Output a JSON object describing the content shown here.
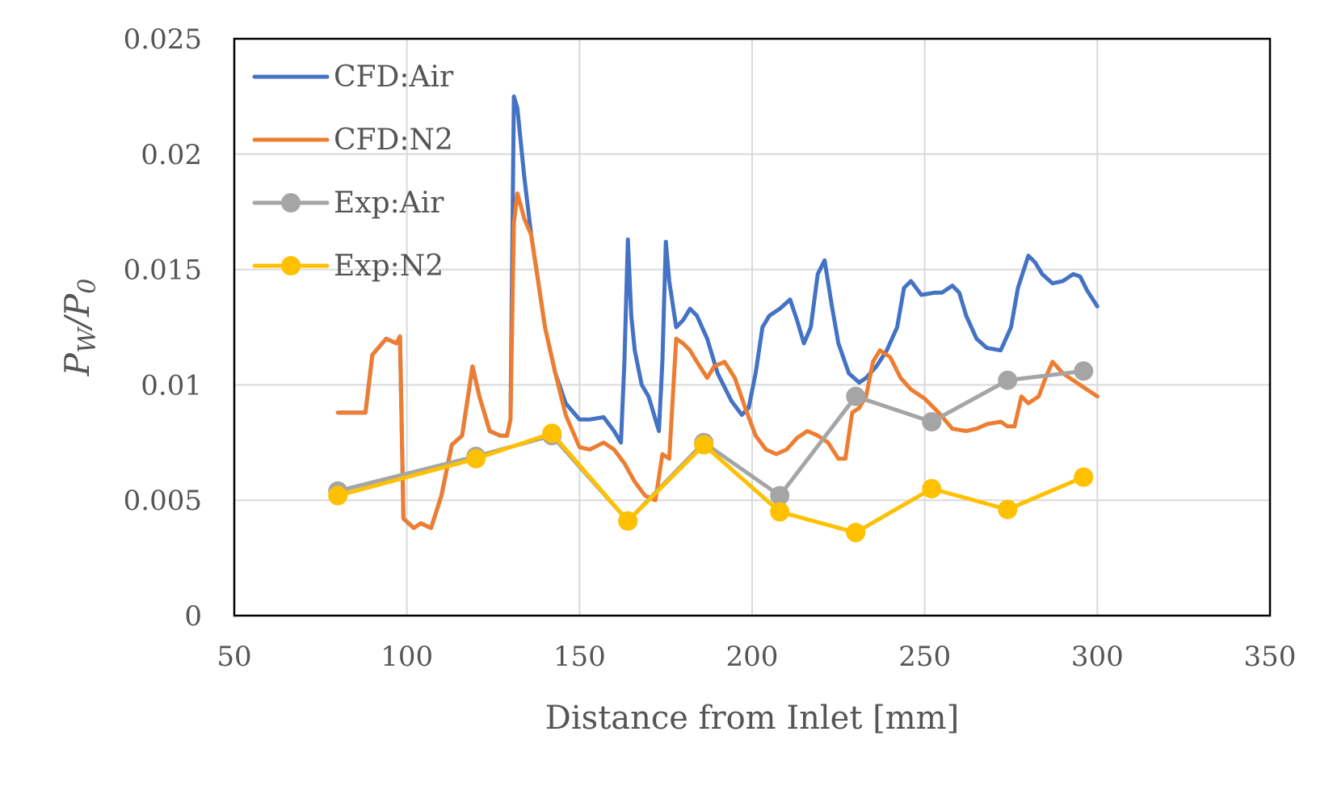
{
  "chart_data": {
    "type": "line",
    "xlabel": "Distance from Inlet [mm]",
    "ylabel": {
      "main": "P",
      "sub1": "W",
      "slash": "/",
      "main2": "P",
      "sub2": "0"
    },
    "xlim": [
      50,
      350
    ],
    "ylim": [
      0,
      0.025
    ],
    "x_ticks": [
      50,
      100,
      150,
      200,
      250,
      300,
      350
    ],
    "x_tick_labels": [
      "50",
      "100",
      "150",
      "200",
      "250",
      "300",
      "350"
    ],
    "y_ticks": [
      0,
      0.005,
      0.01,
      0.015,
      0.02,
      0.025
    ],
    "y_tick_labels": [
      "0",
      "0.005",
      "0.01",
      "0.015",
      "0.02",
      "0.025"
    ],
    "grid": true,
    "legend_position": "top-left",
    "series": [
      {
        "name": "CFD:Air",
        "color": "#4472C4",
        "marker": "none",
        "x": [
          80,
          88,
          90,
          94,
          97,
          98,
          99,
          102,
          104,
          107,
          110,
          113,
          116,
          119,
          121,
          124,
          127,
          129,
          130,
          131,
          132,
          134,
          136,
          138,
          140,
          143,
          146,
          150,
          153,
          157,
          160,
          162,
          163,
          164,
          165,
          166,
          168,
          170,
          173,
          174,
          175,
          176,
          178,
          180,
          182,
          184,
          187,
          190,
          194,
          197,
          199,
          201,
          203,
          205,
          208,
          211,
          213,
          215,
          217,
          219,
          221,
          223,
          225,
          228,
          231,
          233,
          236,
          239,
          242,
          244,
          246,
          249,
          253,
          255,
          258,
          260,
          262,
          265,
          268,
          272,
          275,
          277,
          280,
          282,
          284,
          287,
          290,
          293,
          295,
          297,
          300
        ],
        "y": [
          0.0088,
          0.0088,
          0.0113,
          0.012,
          0.0118,
          0.0121,
          0.0042,
          0.0038,
          0.004,
          0.0038,
          0.0052,
          0.0074,
          0.0078,
          0.0108,
          0.0095,
          0.008,
          0.0078,
          0.0078,
          0.0085,
          0.0225,
          0.022,
          0.019,
          0.0165,
          0.0145,
          0.0125,
          0.0105,
          0.0092,
          0.0085,
          0.0085,
          0.0086,
          0.008,
          0.0075,
          0.011,
          0.0163,
          0.013,
          0.0115,
          0.01,
          0.0095,
          0.008,
          0.011,
          0.0162,
          0.0145,
          0.0125,
          0.0128,
          0.0133,
          0.013,
          0.012,
          0.0105,
          0.0093,
          0.0087,
          0.009,
          0.0105,
          0.0125,
          0.013,
          0.0133,
          0.0137,
          0.0128,
          0.0118,
          0.0125,
          0.0148,
          0.0154,
          0.0135,
          0.0118,
          0.0105,
          0.0101,
          0.0103,
          0.0108,
          0.0115,
          0.0125,
          0.0142,
          0.0145,
          0.0139,
          0.014,
          0.014,
          0.0143,
          0.014,
          0.013,
          0.012,
          0.0116,
          0.0115,
          0.0125,
          0.0142,
          0.0156,
          0.0153,
          0.0148,
          0.0144,
          0.0145,
          0.0148,
          0.0147,
          0.0141,
          0.0134
        ]
      },
      {
        "name": "CFD:N2",
        "color": "#ED7D31",
        "marker": "none",
        "x": [
          80,
          88,
          90,
          94,
          97,
          98,
          99,
          102,
          104,
          107,
          110,
          113,
          116,
          119,
          121,
          124,
          127,
          129,
          130,
          131,
          132,
          134,
          136,
          138,
          140,
          143,
          146,
          150,
          153,
          157,
          160,
          163,
          166,
          169,
          172,
          174,
          176,
          178,
          180,
          182,
          184,
          187,
          189,
          192,
          195,
          198,
          201,
          204,
          207,
          210,
          213,
          216,
          219,
          222,
          225,
          227,
          229,
          231,
          233,
          235,
          237,
          240,
          243,
          246,
          250,
          254,
          258,
          262,
          265,
          268,
          272,
          274,
          276,
          278,
          280,
          283,
          285,
          287,
          290,
          293,
          296,
          300
        ],
        "y": [
          0.0088,
          0.0088,
          0.0113,
          0.012,
          0.0118,
          0.0121,
          0.0042,
          0.0038,
          0.004,
          0.0038,
          0.0052,
          0.0074,
          0.0078,
          0.0108,
          0.0095,
          0.008,
          0.0078,
          0.0078,
          0.0085,
          0.017,
          0.0183,
          0.0172,
          0.0165,
          0.0145,
          0.0125,
          0.0105,
          0.0087,
          0.0073,
          0.0072,
          0.0075,
          0.0072,
          0.0066,
          0.0058,
          0.0052,
          0.005,
          0.007,
          0.0068,
          0.012,
          0.0118,
          0.0115,
          0.011,
          0.0103,
          0.0108,
          0.011,
          0.0103,
          0.009,
          0.0078,
          0.0072,
          0.007,
          0.0072,
          0.0077,
          0.008,
          0.0078,
          0.0075,
          0.0068,
          0.0068,
          0.0088,
          0.009,
          0.0095,
          0.011,
          0.0115,
          0.0112,
          0.0103,
          0.0098,
          0.0094,
          0.0088,
          0.0081,
          0.008,
          0.0081,
          0.0083,
          0.0084,
          0.0082,
          0.0082,
          0.0095,
          0.0092,
          0.0095,
          0.0103,
          0.011,
          0.0105,
          0.0102,
          0.0099,
          0.0095
        ]
      },
      {
        "name": "Exp:Air",
        "color": "#A5A5A5",
        "marker": "circle",
        "x": [
          80,
          120,
          142,
          164,
          186,
          208,
          230,
          252,
          274,
          296
        ],
        "y": [
          0.0054,
          0.0069,
          0.0078,
          0.0041,
          0.0075,
          0.0052,
          0.0095,
          0.0084,
          0.0102,
          0.0106
        ]
      },
      {
        "name": "Exp:N2",
        "color": "#FFC000",
        "marker": "circle",
        "x": [
          80,
          120,
          142,
          164,
          186,
          208,
          230,
          252,
          274,
          296
        ],
        "y": [
          0.0052,
          0.0068,
          0.0079,
          0.0041,
          0.0074,
          0.0045,
          0.0036,
          0.0055,
          0.0046,
          0.006
        ]
      }
    ]
  }
}
